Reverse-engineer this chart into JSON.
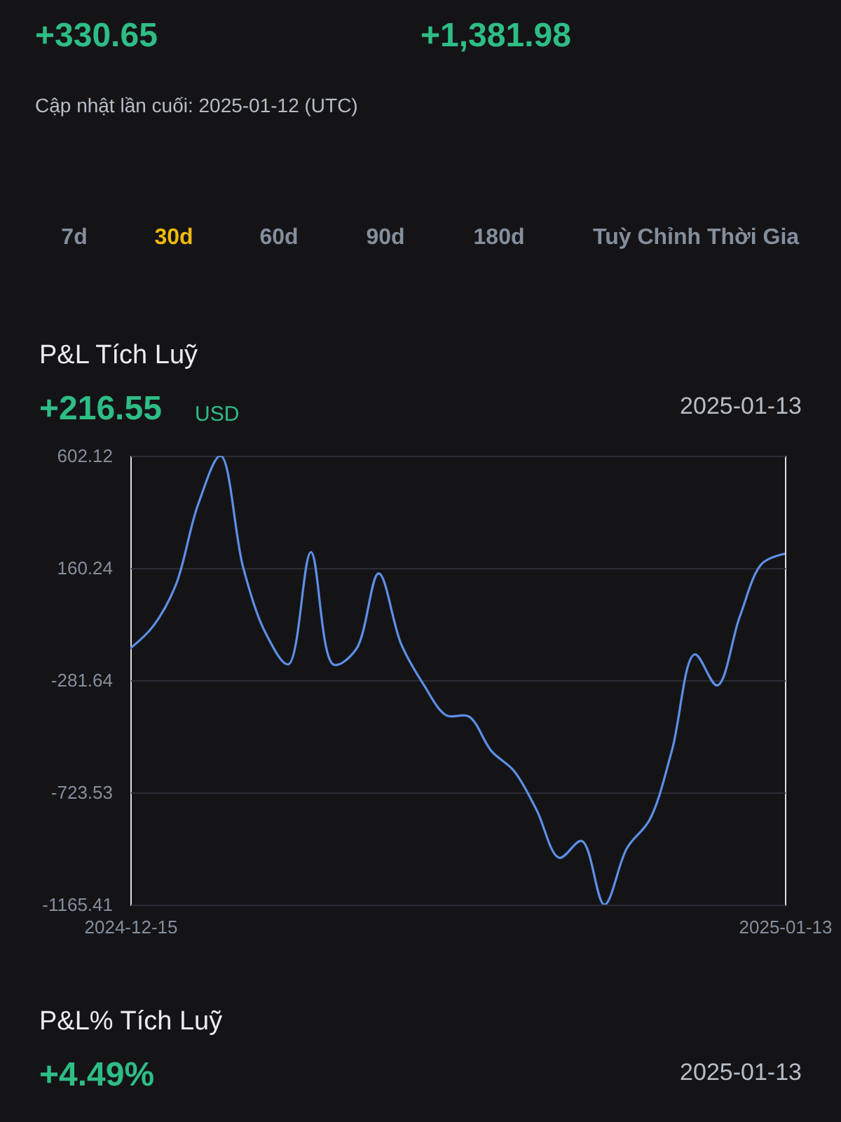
{
  "chart_data": {
    "type": "line",
    "title": "P&L Tích Luỹ",
    "annotations": [
      "+330.65",
      "+1,381.98",
      "Cập nhật lần cuối: 2025-01-12 (UTC)",
      "7d",
      "30d",
      "60d",
      "90d",
      "180d",
      "Tuỳ Chỉnh Thời Gia",
      "+216.55",
      "USD",
      "2025-01-13",
      "P&L% Tích Luỹ",
      "+4.49%",
      "2025-01-13"
    ],
    "x": [
      "2024-12-15",
      "2024-12-16",
      "2024-12-17",
      "2024-12-18",
      "2024-12-19",
      "2024-12-20",
      "2024-12-21",
      "2024-12-22",
      "2024-12-23",
      "2024-12-24",
      "2024-12-25",
      "2024-12-26",
      "2024-12-27",
      "2024-12-28",
      "2024-12-29",
      "2024-12-30",
      "2024-12-31",
      "2025-01-01",
      "2025-01-02",
      "2025-01-03",
      "2025-01-04",
      "2025-01-05",
      "2025-01-06",
      "2025-01-07",
      "2025-01-08",
      "2025-01-09",
      "2025-01-10",
      "2025-01-11",
      "2025-01-12",
      "2025-01-13"
    ],
    "series": [
      {
        "color": "#5d8fe6",
        "values": [
          -156,
          -70,
          90,
          410,
          602.12,
          162,
          -97,
          -219,
          223,
          -220,
          -160,
          139,
          -140,
          -300,
          -420,
          -425,
          -561,
          -639,
          -793,
          -981,
          -915,
          -1165.41,
          -943,
          -832,
          -556,
          -180,
          -302,
          -31,
          179,
          216.55
        ]
      }
    ],
    "xlim": [
      "2024-12-15",
      "2025-01-13"
    ],
    "xticks": [
      "2024-12-15",
      "2025-01-13"
    ],
    "ylim": [
      -1165.41,
      602.12
    ],
    "yticks": [
      -1165.41,
      -723.53,
      -281.64,
      160.24,
      602.12
    ],
    "grid": "y"
  }
}
